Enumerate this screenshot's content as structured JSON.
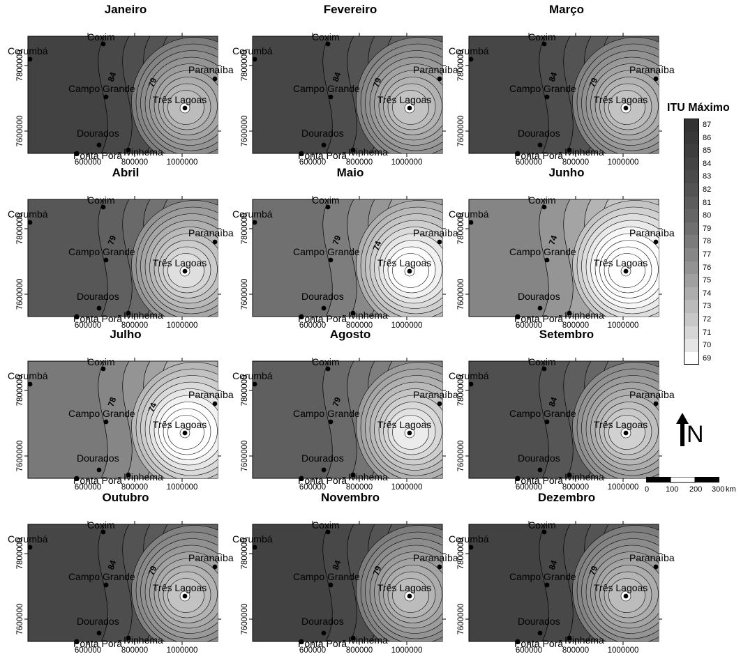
{
  "months": [
    {
      "title": "Janeiro",
      "labels": [
        "84",
        "79"
      ],
      "t": 0.0
    },
    {
      "title": "Fevereiro",
      "labels": [
        "84",
        "79"
      ],
      "t": 0.05
    },
    {
      "title": "Março",
      "labels": [
        "84",
        "79"
      ],
      "t": 0.05
    },
    {
      "title": "Abril",
      "labels": [
        "79"
      ],
      "t": 0.25
    },
    {
      "title": "Maio",
      "labels": [
        "79",
        "74"
      ],
      "t": 0.55
    },
    {
      "title": "Junho",
      "labels": [
        "74"
      ],
      "t": 0.8
    },
    {
      "title": "Julho",
      "labels": [
        "78",
        "74"
      ],
      "t": 0.65
    },
    {
      "title": "Agosto",
      "labels": [
        "79"
      ],
      "t": 0.35
    },
    {
      "title": "Setembro",
      "labels": [
        "84"
      ],
      "t": 0.15
    },
    {
      "title": "Outubro",
      "labels": [
        "84",
        "79"
      ],
      "t": 0.05
    },
    {
      "title": "Novembro",
      "labels": [
        "84",
        "79"
      ],
      "t": 0.0
    },
    {
      "title": "Dezembro",
      "labels": [
        "84",
        "79"
      ],
      "t": 0.0
    }
  ],
  "cities": [
    "Coxim",
    "Corumbá",
    "Paranaíba",
    "Campo Grande",
    "Três Lagoas",
    "Dourados",
    "Ivinhema",
    "Ponta Porã"
  ],
  "axes": {
    "x_ticks": [
      "600000",
      "800000",
      "1000000"
    ],
    "y_ticks": [
      "7800000",
      "7600000"
    ]
  },
  "legend": {
    "title": "ITU Máximo",
    "values": [
      87,
      86,
      85,
      84,
      83,
      82,
      81,
      80,
      79,
      78,
      77,
      76,
      75,
      74,
      73,
      72,
      71,
      70,
      69
    ],
    "colors": [
      "#333333",
      "#383838",
      "#3e3e3e",
      "#444444",
      "#4b4b4b",
      "#535353",
      "#5c5c5c",
      "#656565",
      "#707070",
      "#7b7b7b",
      "#878787",
      "#939393",
      "#a0a0a0",
      "#adadad",
      "#bbbbbb",
      "#c8c8c8",
      "#d6d6d6",
      "#e6e6e6",
      "#ffffff"
    ]
  },
  "north": {
    "letter": "N"
  },
  "scale_bar": {
    "labels": [
      "0",
      "100",
      "200",
      "300"
    ],
    "unit": "km"
  }
}
